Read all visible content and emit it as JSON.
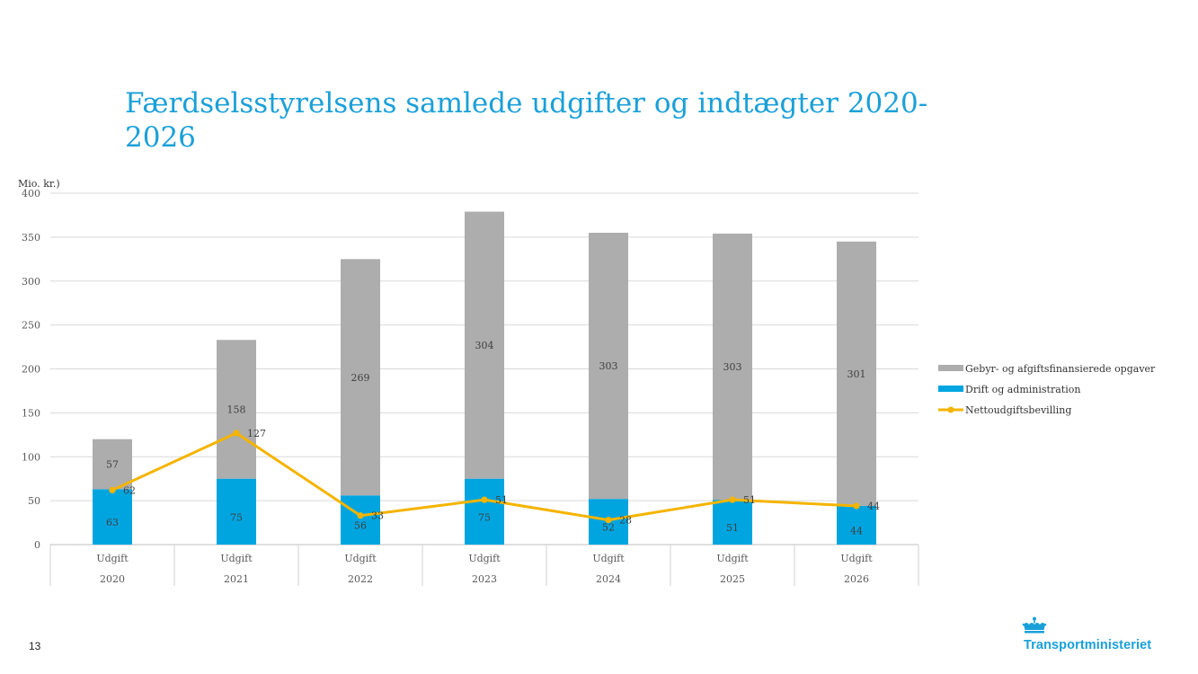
{
  "slide": {
    "title": "Færdselsstyrelsens samlede udgifter og indtægter 2020-2026",
    "page_number": "13",
    "logo_text": "Transportministeriet"
  },
  "colors": {
    "title": "#1aa0d9",
    "gebyr": "#adadad",
    "drift": "#00a5e0",
    "netto": "#f4b400",
    "grid": "#d9d9d9",
    "text": "#595959"
  },
  "chart_data": {
    "type": "bar",
    "stacked": true,
    "ylabel": "Mio. kr.)",
    "ylim": [
      0,
      400
    ],
    "yticks": [
      0,
      50,
      100,
      150,
      200,
      250,
      300,
      350,
      400
    ],
    "categories": [
      "Udgift",
      "Udgift",
      "Udgift",
      "Udgift",
      "Udgift",
      "Udgift",
      "Udgift"
    ],
    "groups": [
      "2020",
      "2021",
      "2022",
      "2023",
      "2024",
      "2025",
      "2026"
    ],
    "series": [
      {
        "name": "Drift og administration",
        "kind": "bar",
        "values": [
          63,
          75,
          56,
          75,
          52,
          51,
          44
        ]
      },
      {
        "name": "Gebyr- og afgiftsfinansierede opgaver",
        "kind": "bar",
        "values": [
          57,
          158,
          269,
          304,
          303,
          303,
          301
        ]
      },
      {
        "name": "Nettoudgiftsbevilling",
        "kind": "line",
        "values": [
          62,
          127,
          33,
          51,
          28,
          51,
          44
        ]
      }
    ],
    "legend_position": "right",
    "grid": true
  }
}
